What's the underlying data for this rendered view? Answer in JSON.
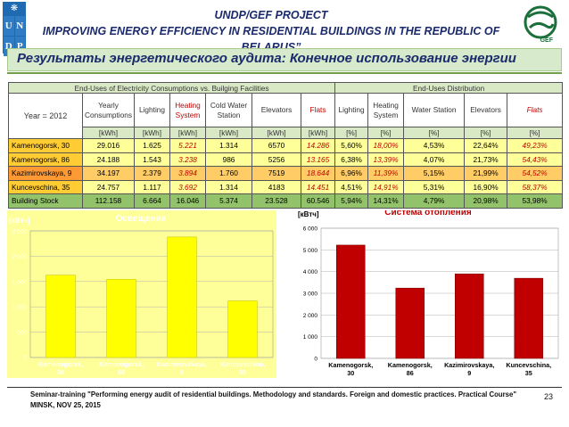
{
  "header": {
    "line1": "UNDP/GEF PROJECT",
    "line2": "IMPROVING ENERGY EFFICIENCY IN RESIDENTIAL BUILDINGS IN THE REPUBLIC OF BELARUS”",
    "undp_letters": [
      "U",
      "N",
      "D",
      "P"
    ],
    "gef_label": "GEF"
  },
  "banner": {
    "title": "Результаты энергетического аудита: Конечное использование энергии"
  },
  "table": {
    "section_left": "End-Uses of Electricity Consumptions vs. Builging Facilities",
    "section_right": "End-Uses Distribution",
    "year_label": "Year = 2012",
    "col_headers": [
      "Yearly Consumptions",
      "Lighting",
      "Heating System",
      "Cold Water Station",
      "Elevators",
      "Flats",
      "Lighting",
      "Heating System",
      "Water Station",
      "Elevators",
      "Flats"
    ],
    "units": [
      "[kWh]",
      "[kWh]",
      "[kWh]",
      "[kWh]",
      "[kWh]",
      "[kWh]",
      "[%]",
      "[%]",
      "[%]",
      "[%]",
      "[%]"
    ],
    "rows": [
      {
        "name": "Kamenogorsk, 30",
        "cells": [
          "29.016",
          "1.625",
          "5.221",
          "1.314",
          "6570",
          "14.286",
          "5,60%",
          "18,00%",
          "4,53%",
          "22,64%",
          "49,23%"
        ]
      },
      {
        "name": "Kamenogorsk, 86",
        "cells": [
          "24.188",
          "1.543",
          "3.238",
          "986",
          "5256",
          "13.165",
          "6,38%",
          "13,39%",
          "4,07%",
          "21,73%",
          "54,43%"
        ]
      },
      {
        "name": "Kazimirovskaya, 9",
        "cells": [
          "34.197",
          "2.379",
          "3.894",
          "1.760",
          "7519",
          "18.644",
          "6,96%",
          "11,39%",
          "5,15%",
          "21,99%",
          "54,52%"
        ]
      },
      {
        "name": "Kuncevschina, 35",
        "cells": [
          "24.757",
          "1.117",
          "3.692",
          "1.314",
          "4183",
          "14.451",
          "4,51%",
          "14,91%",
          "5,31%",
          "16,90%",
          "58,37%"
        ]
      },
      {
        "name": "Building Stock",
        "cells": [
          "112.158",
          "6.664",
          "16.046",
          "5.374",
          "23.528",
          "60.546",
          "5,94%",
          "14,31%",
          "4,79%",
          "20,98%",
          "53,98%"
        ]
      }
    ]
  },
  "chart_data": [
    {
      "type": "bar",
      "title": "Освещение",
      "ylabel": "[кВтч]",
      "categories": [
        "Kamenogorsk, 30",
        "Kamenogorsk, 86",
        "Kazimirovskaya, 9",
        "Kuncevschina, 35"
      ],
      "values": [
        1625,
        1543,
        2379,
        1117
      ],
      "ylim": [
        0,
        2500
      ],
      "yticks": [
        "0",
        "500",
        "1 000",
        "1 500",
        "2 000",
        "2 500"
      ],
      "bar_color": "#ffff00",
      "background": "#ffff99",
      "grid": true
    },
    {
      "type": "bar",
      "title": "Система отопления",
      "ylabel": "[кВтч]",
      "categories": [
        "Kamenogorsk, 30",
        "Kamenogorsk, 86",
        "Kazimirovskaya, 9",
        "Kuncevschina, 35"
      ],
      "values": [
        5221,
        3238,
        3894,
        3692
      ],
      "ylim": [
        0,
        6000
      ],
      "yticks": [
        "0",
        "1 000",
        "2 000",
        "3 000",
        "4 000",
        "5 000",
        "6 000"
      ],
      "bar_color": "#c00000",
      "background": "#ffffff",
      "grid": true
    }
  ],
  "footer": {
    "line1": "Seminar-training \"Performing energy audit of residential buildings. Methodology and standards. Foreign and domestic practices. Practical Course\"",
    "line2": "MINSK, NOV 25, 2015",
    "page": "23"
  }
}
